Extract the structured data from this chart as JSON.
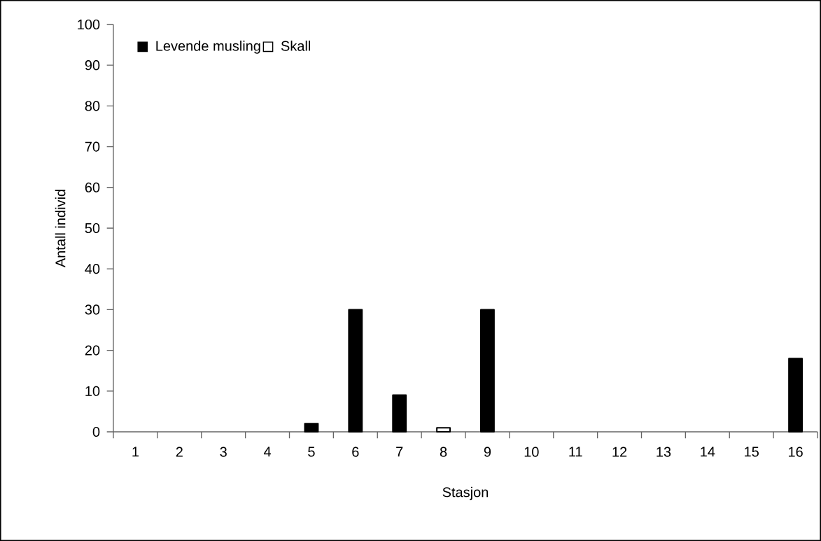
{
  "chart_data": {
    "type": "bar",
    "stacked": true,
    "xlabel": "Stasjon",
    "ylabel": "Antall individ",
    "categories": [
      "1",
      "2",
      "3",
      "4",
      "5",
      "6",
      "7",
      "8",
      "9",
      "10",
      "11",
      "12",
      "13",
      "14",
      "15",
      "16"
    ],
    "series": [
      {
        "name": "Levende musling",
        "color": "#000000",
        "values": [
          null,
          null,
          null,
          null,
          2,
          30,
          9,
          null,
          30,
          null,
          null,
          null,
          null,
          null,
          null,
          18
        ]
      },
      {
        "name": "Skall",
        "color": "#ffffff",
        "values": [
          null,
          null,
          null,
          null,
          null,
          null,
          null,
          1,
          null,
          null,
          null,
          null,
          null,
          null,
          null,
          null
        ]
      }
    ],
    "ylim": [
      0,
      100
    ],
    "yticks": [
      0,
      10,
      20,
      30,
      40,
      50,
      60,
      70,
      80,
      90,
      100
    ],
    "legend": "top left"
  }
}
